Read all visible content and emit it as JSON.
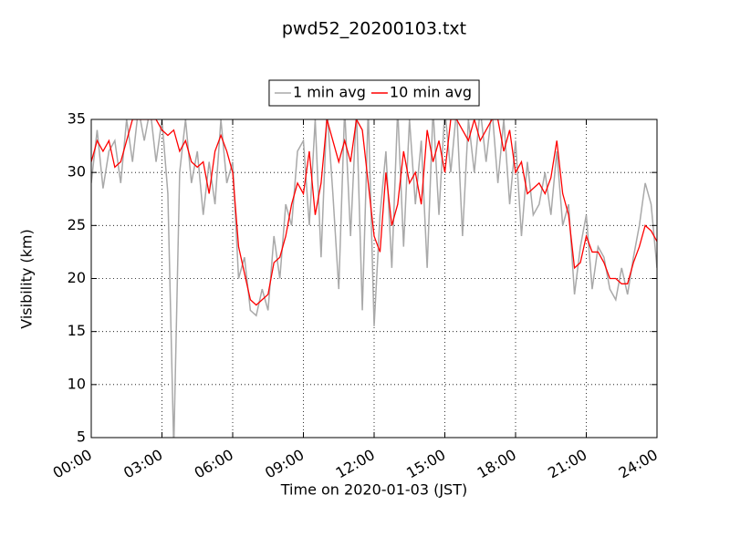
{
  "chart_data": {
    "type": "line",
    "title": "pwd52_20200103.txt",
    "x_label": "Time on 2020-01-03 (JST)",
    "y_label": "Visibility (km)",
    "x": [
      0,
      0.25,
      0.5,
      0.75,
      1,
      1.25,
      1.5,
      1.75,
      2,
      2.25,
      2.5,
      2.75,
      3,
      3.25,
      3.5,
      3.75,
      4,
      4.25,
      4.5,
      4.75,
      5,
      5.25,
      5.5,
      5.75,
      6,
      6.25,
      6.5,
      6.75,
      7,
      7.25,
      7.5,
      7.75,
      8,
      8.25,
      8.5,
      8.75,
      9,
      9.25,
      9.5,
      9.75,
      10,
      10.25,
      10.5,
      10.75,
      11,
      11.25,
      11.5,
      11.75,
      12,
      12.25,
      12.5,
      12.75,
      13,
      13.25,
      13.5,
      13.75,
      14,
      14.25,
      14.5,
      14.75,
      15,
      15.25,
      15.5,
      15.75,
      16,
      16.25,
      16.5,
      16.75,
      17,
      17.25,
      17.5,
      17.75,
      18,
      18.25,
      18.5,
      18.75,
      19,
      19.25,
      19.5,
      19.75,
      20,
      20.25,
      20.5,
      20.75,
      21,
      21.25,
      21.5,
      21.75,
      22,
      22.25,
      22.5,
      22.75,
      23,
      23.25,
      23.5,
      23.75,
      24
    ],
    "series": [
      {
        "name": "1 min avg",
        "color": "#a9a9a9",
        "values": [
          29,
          34,
          28.5,
          32,
          33,
          29,
          35,
          31,
          36,
          33,
          36,
          31,
          35,
          28,
          4,
          30,
          35,
          29,
          32,
          26,
          31,
          27,
          35,
          29,
          31,
          20,
          22,
          17,
          16.5,
          19,
          17,
          24,
          20,
          27,
          25,
          32,
          33,
          25,
          35,
          22,
          36,
          28,
          19,
          36,
          24,
          36,
          17,
          36,
          15.5,
          26,
          32,
          21,
          36,
          23,
          35,
          27,
          33,
          21,
          36,
          26,
          36,
          30,
          36,
          24,
          35,
          30,
          36,
          31,
          36,
          29,
          35,
          27,
          33,
          24,
          31,
          26,
          27,
          30,
          26,
          32,
          25,
          27,
          18.5,
          23,
          26,
          19,
          23,
          22,
          19,
          18,
          21,
          18.5,
          22,
          25,
          29,
          27,
          21
        ]
      },
      {
        "name": "10 min avg",
        "color": "#ff0000",
        "values": [
          31,
          33,
          32,
          33,
          30.5,
          31,
          33,
          35,
          35,
          35,
          35,
          35,
          34,
          33.5,
          34,
          32,
          33,
          31,
          30.5,
          31,
          28,
          32,
          33.5,
          32,
          30,
          23,
          20.5,
          18,
          17.5,
          18,
          18.5,
          21.5,
          22,
          24,
          27,
          29,
          28,
          32,
          26,
          29,
          35,
          33,
          31,
          33,
          31,
          35,
          34,
          29,
          24,
          22.5,
          30,
          25,
          27,
          32,
          29,
          30,
          27,
          34,
          31,
          33,
          30,
          35,
          35,
          34,
          33,
          35,
          33,
          34,
          35,
          35,
          32,
          34,
          30,
          31,
          28,
          28.5,
          29,
          28,
          29.5,
          33,
          28,
          26,
          21,
          21.5,
          24,
          22.5,
          22.5,
          21.5,
          20,
          20,
          19.5,
          19.5,
          21.5,
          23,
          25,
          24.5,
          23.5
        ]
      }
    ],
    "xlim": [
      0,
      24
    ],
    "xticks": [
      {
        "value": 0,
        "label": "00:00"
      },
      {
        "value": 3,
        "label": "03:00"
      },
      {
        "value": 6,
        "label": "06:00"
      },
      {
        "value": 9,
        "label": "09:00"
      },
      {
        "value": 12,
        "label": "12:00"
      },
      {
        "value": 15,
        "label": "15:00"
      },
      {
        "value": 18,
        "label": "18:00"
      },
      {
        "value": 21,
        "label": "21:00"
      },
      {
        "value": 24,
        "label": "24:00"
      }
    ],
    "ylim": [
      5,
      35
    ],
    "yticks": [
      5,
      10,
      15,
      20,
      25,
      30,
      35
    ],
    "grid": true,
    "legend": "upper center"
  }
}
